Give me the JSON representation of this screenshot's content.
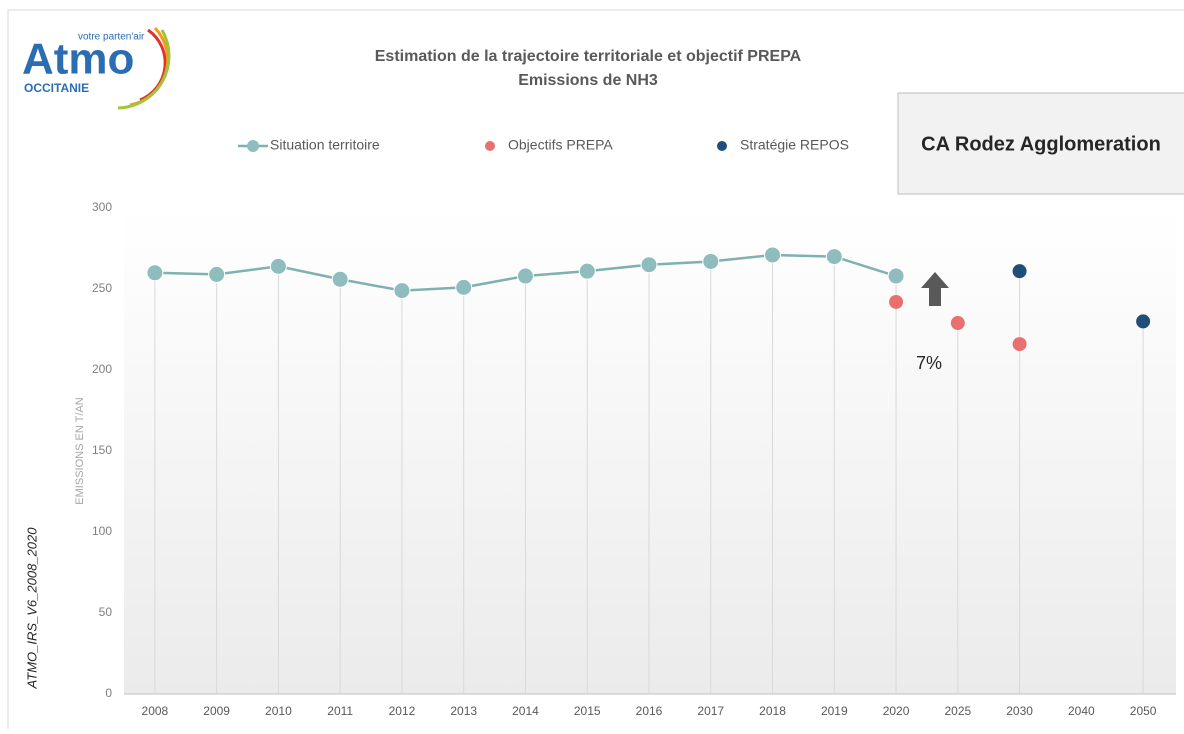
{
  "chart_data": {
    "type": "line",
    "title": "Estimation de la trajectoire territoriale  et objectif PREPA",
    "subtitle": "Emissions de NH3",
    "y_label": "EMISSIONS  EN T/AN",
    "side_label": "ATMO_IRS_V6_2008_2020",
    "territory": "CA Rodez Agglomeration",
    "logo": {
      "name": "Atmo",
      "tagline": "votre parten'air",
      "region": "OCCITANIE"
    },
    "annotation": "7%",
    "categories": [
      "2008",
      "2009",
      "2010",
      "2011",
      "2012",
      "2013",
      "2014",
      "2015",
      "2016",
      "2017",
      "2018",
      "2019",
      "2020",
      "2025",
      "2030",
      "2040",
      "2050"
    ],
    "series": [
      {
        "name": "Situation territoire",
        "type": "line",
        "color": "#8fbcbc",
        "values": [
          260,
          259,
          264,
          256,
          249,
          251,
          258,
          261,
          265,
          267,
          271,
          270,
          258,
          null,
          null,
          null,
          null
        ]
      },
      {
        "name": "Objectifs PREPA",
        "type": "scatter",
        "color": "#e8706f",
        "values": [
          null,
          null,
          null,
          null,
          null,
          null,
          null,
          null,
          null,
          null,
          null,
          null,
          242,
          229,
          216,
          null,
          null
        ]
      },
      {
        "name": "Stratégie REPOS",
        "type": "scatter",
        "color": "#1f4e79",
        "values": [
          null,
          null,
          null,
          null,
          null,
          null,
          null,
          null,
          null,
          null,
          null,
          null,
          null,
          null,
          261,
          null,
          230
        ]
      }
    ],
    "ylim": [
      0,
      300
    ],
    "yticks": [
      0,
      50,
      100,
      150,
      200,
      250,
      300
    ]
  }
}
